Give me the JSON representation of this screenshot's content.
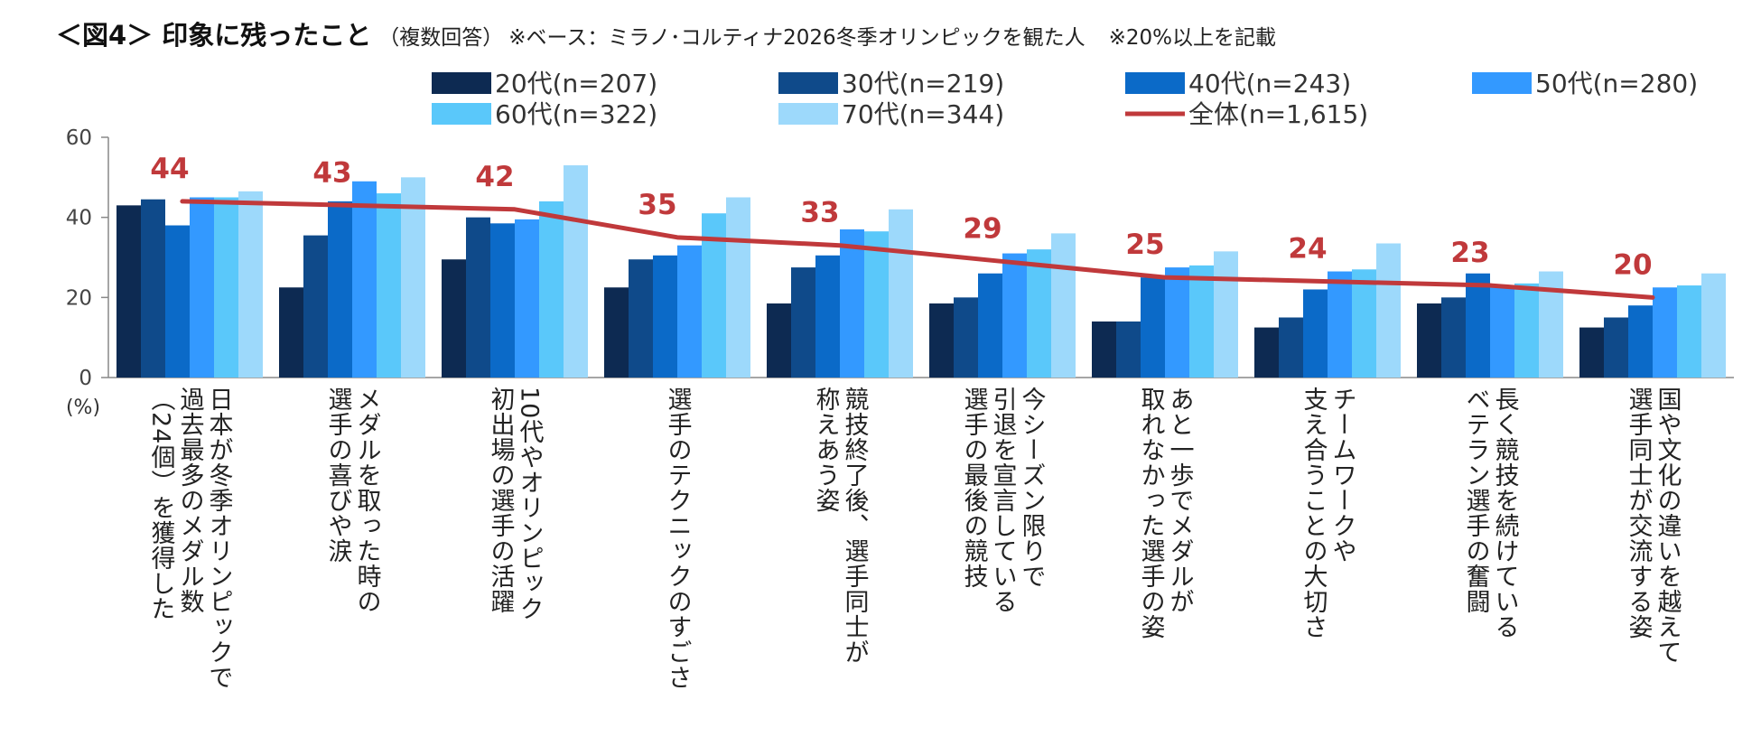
{
  "header": {
    "title": "＜図4＞ 印象に残ったこと",
    "subtitle": "（複数回答）",
    "note": "※ベース：ミラノ･コルティナ2026冬季オリンピックを観た人",
    "note2": "※20%以上を記載"
  },
  "chart_data": {
    "type": "bar",
    "title": "印象に残ったこと",
    "ylabel": "(%)",
    "ylim": [
      0,
      60
    ],
    "yticks": [
      0,
      20,
      40,
      60
    ],
    "legend_position": "top",
    "categories": [
      "日本が冬季オリンピックで過去最多のメダル数（24個）を獲得した",
      "メダルを取った時の選手の喜びや涙",
      "10代やオリンピック初出場の選手の活躍",
      "選手のテクニックのすごさ",
      "競技終了後、選手同士が称えあう姿",
      "今シーズン限りで引退を宣言している選手の最後の競技",
      "あと一歩でメダルが取れなかった選手の姿",
      "チームワークや支え合うことの大切さ",
      "長く競技を続けているベテラン選手の奮闘",
      "国や文化の違いを越えて選手同士が交流する姿"
    ],
    "category_lines": [
      [
        "日本が冬季オリンピックで",
        "過去最多のメダル数",
        "（24個）を獲得した"
      ],
      [
        "メダルを取った時の",
        "選手の喜びや涙"
      ],
      [
        "10代やオリンピック",
        "初出場の選手の活躍"
      ],
      [
        "選手のテクニックのすごさ"
      ],
      [
        "競技終了後、選手同士が",
        "称えあう姿"
      ],
      [
        "今シーズン限りで",
        "引退を宣言している",
        "選手の最後の競技"
      ],
      [
        "あと一歩でメダルが",
        "取れなかった選手の姿"
      ],
      [
        "チームワークや",
        "支え合うことの大切さ"
      ],
      [
        "長く競技を続けている",
        "ベテラン選手の奮闘"
      ],
      [
        "国や文化の違いを越えて",
        "選手同士が交流する姿"
      ]
    ],
    "series": [
      {
        "name": "20代(n=207)",
        "color": "#0d2a52",
        "values": [
          43,
          22.5,
          29.5,
          22.5,
          18.5,
          18.5,
          14,
          12.5,
          18.5,
          12.5
        ]
      },
      {
        "name": "30代(n=219)",
        "color": "#0f4a8a",
        "values": [
          44.5,
          35.5,
          40,
          29.5,
          27.5,
          20,
          14,
          15,
          20,
          15
        ]
      },
      {
        "name": "40代(n=243)",
        "color": "#0b6ac8",
        "values": [
          38,
          44,
          38.5,
          30.5,
          30.5,
          26,
          25,
          22,
          26,
          18
        ]
      },
      {
        "name": "50代(n=280)",
        "color": "#3399ff",
        "values": [
          45,
          49,
          39.5,
          33,
          37,
          31,
          27.5,
          26.5,
          23,
          22.5
        ]
      },
      {
        "name": "60代(n=322)",
        "color": "#5ac8fa",
        "values": [
          45,
          46,
          44,
          41,
          36.5,
          32,
          28,
          27,
          23.5,
          23
        ]
      },
      {
        "name": "70代(n=344)",
        "color": "#9dd9fb",
        "values": [
          46.5,
          50,
          53,
          45,
          42,
          36,
          31.5,
          33.5,
          26.5,
          26
        ]
      }
    ],
    "total": {
      "name": "全体(n=1,615)",
      "color": "#c0393b",
      "values": [
        44,
        43,
        42,
        35,
        33,
        29,
        25,
        24,
        23,
        20
      ],
      "labels": [
        "44",
        "43",
        "42",
        "35",
        "33",
        "29",
        "25",
        "24",
        "23",
        "20"
      ]
    }
  }
}
